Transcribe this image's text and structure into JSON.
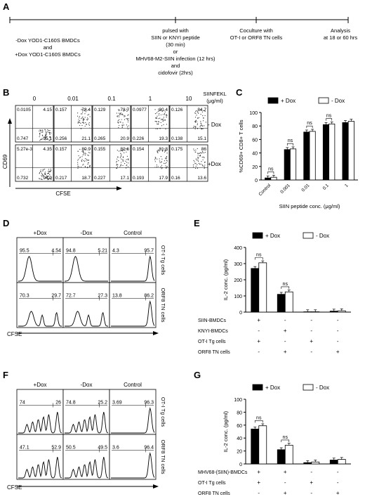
{
  "panelA": {
    "letter": "A",
    "step1": [
      "-Dox YOD1-C160S BMDCs",
      "and",
      "+Dox YOD1-C160S BMDCs"
    ],
    "step2": [
      "pulsed with",
      "SIIN or KNYI peptide",
      "(30 min)",
      "or",
      "MHV68-M2-SIIN infection (12 hrs)",
      "and",
      "cidofovir (2hrs)"
    ],
    "step3": [
      "Coculture with",
      "OT-I or ORF8 TN cells"
    ],
    "step4": [
      "Analysis",
      "at 18 or 60 hrs"
    ]
  },
  "panelB": {
    "letter": "B",
    "concs": [
      "0",
      "0.01",
      "0.1",
      "1",
      "10"
    ],
    "unit_label": [
      "SIINFEKL",
      "(μg/ml)"
    ],
    "rows": [
      {
        "label": "- Dox",
        "quads": [
          [
            "0.0105",
            "4.15",
            "0.747",
            "95.1"
          ],
          [
            "0.157",
            "78.4",
            "0.256",
            "21.1"
          ],
          [
            "0.129",
            "78.7",
            "0.265",
            "20.9"
          ],
          [
            "0.0977",
            "80.4",
            "0.226",
            "19.3"
          ],
          [
            "0.126",
            "84.7",
            "0.138",
            "15.1"
          ]
        ]
      },
      {
        "label": "+Dox",
        "quads": [
          [
            "5.27e-3",
            "4.35",
            "0.732",
            "94.9"
          ],
          [
            "0.157",
            "80.9",
            "0.217",
            "18.7"
          ],
          [
            "0.155",
            "82.6",
            "0.227",
            "17.1"
          ],
          [
            "0.154",
            "81.8",
            "0.193",
            "17.9"
          ],
          [
            "0.175",
            "86",
            "0.16",
            "13.6"
          ]
        ]
      }
    ],
    "ylabel": "CD69",
    "xlabel": "CFSE"
  },
  "panelD": {
    "letter": "D",
    "cols": [
      "+Dox",
      "-Dox",
      "Control"
    ],
    "rows": [
      {
        "label": "OT-I Tg cells",
        "vals": [
          [
            "95.5",
            "4.54"
          ],
          [
            "94.8",
            "5.21"
          ],
          [
            "4.3",
            "95.7"
          ]
        ]
      },
      {
        "label": "ORF8 TN cells",
        "vals": [
          [
            "70.3",
            "29.7"
          ],
          [
            "72.7",
            "27.3"
          ],
          [
            "13.8",
            "86.2"
          ]
        ]
      }
    ],
    "xlabel": "CFSE"
  },
  "panelF": {
    "letter": "F",
    "cols": [
      "+Dox",
      "-Dox",
      "Control"
    ],
    "rows": [
      {
        "label": "OT-I Tg cells",
        "vals": [
          [
            "74",
            "26"
          ],
          [
            "74.8",
            "25.2"
          ],
          [
            "3.69",
            "96.3"
          ]
        ]
      },
      {
        "label": "ORF8 TN cells",
        "vals": [
          [
            "47.1",
            "52.9"
          ],
          [
            "50.5",
            "49.5"
          ],
          [
            "3.6",
            "96.4"
          ]
        ]
      }
    ],
    "xlabel": "CFSE"
  },
  "chart_data": [
    {
      "panel": "C",
      "type": "bar",
      "categories": [
        "Control",
        "0.001",
        "0.01",
        "0.1",
        "1"
      ],
      "series": [
        {
          "name": "+ Dox",
          "values": [
            3,
            45,
            71,
            82,
            85
          ],
          "color": "#000000"
        },
        {
          "name": "- Dox",
          "values": [
            4,
            46,
            72,
            83,
            87
          ],
          "color": "#ffffff"
        }
      ],
      "xlabel": "SIIN peptide conc. (μg/ml)",
      "ylabel": "%CD69+ CD8+ T cells",
      "ylim": [
        0,
        100
      ],
      "yticks": [
        "0",
        "20",
        "40",
        "60",
        "80",
        "100"
      ],
      "annotations": [
        "ns",
        "ns",
        "ns",
        "ns"
      ],
      "legend": "top"
    },
    {
      "panel": "E",
      "type": "bar",
      "categories": [
        "1",
        "2",
        "3",
        "4"
      ],
      "series": [
        {
          "name": "+ Dox",
          "values": [
            270,
            110,
            2,
            6
          ],
          "color": "#000000"
        },
        {
          "name": "- Dox",
          "values": [
            305,
            125,
            2,
            8
          ],
          "color": "#ffffff"
        }
      ],
      "ylabel": "IL-2 conc. (pg/ml)",
      "ylim": [
        0,
        400
      ],
      "yticks": [
        "0",
        "100",
        "200",
        "300",
        "400"
      ],
      "annotations": [
        "ns",
        "ns"
      ],
      "rows": [
        {
          "label": "SIIN-BMDCs",
          "signs": [
            "+",
            "-",
            "-",
            "-"
          ]
        },
        {
          "label": "KNYI-BMDCs",
          "signs": [
            "-",
            "+",
            "-",
            "-"
          ]
        },
        {
          "label": "OT-I Tg cells",
          "signs": [
            "+",
            "-",
            "+",
            "-"
          ]
        },
        {
          "label": "ORF8 TN cells",
          "signs": [
            "-",
            "+",
            "-",
            "+"
          ]
        }
      ],
      "legend": "top"
    },
    {
      "panel": "G",
      "type": "bar",
      "categories": [
        "1",
        "2",
        "3",
        "4"
      ],
      "series": [
        {
          "name": "+ Dox",
          "values": [
            54,
            22,
            2,
            6
          ],
          "color": "#000000"
        },
        {
          "name": "- Dox",
          "values": [
            59,
            29,
            3,
            7
          ],
          "color": "#ffffff"
        }
      ],
      "ylabel": "IL-2 conc. (pg/ml)",
      "ylim": [
        0,
        100
      ],
      "yticks": [
        "0",
        "20",
        "40",
        "60",
        "80",
        "100"
      ],
      "annotations": [
        "ns",
        "ns"
      ],
      "rows": [
        {
          "label": "MHV68-(SIIN)-BMDCs",
          "signs": [
            "+",
            "+",
            "-",
            "-"
          ]
        },
        {
          "label": "OT-I Tg cells",
          "signs": [
            "+",
            "-",
            "+",
            "-"
          ]
        },
        {
          "label": "ORF8 TN cells",
          "signs": [
            "-",
            "+",
            "-",
            "+"
          ]
        }
      ],
      "legend": "top"
    }
  ],
  "letters": {
    "C": "C",
    "E": "E",
    "G": "G"
  }
}
